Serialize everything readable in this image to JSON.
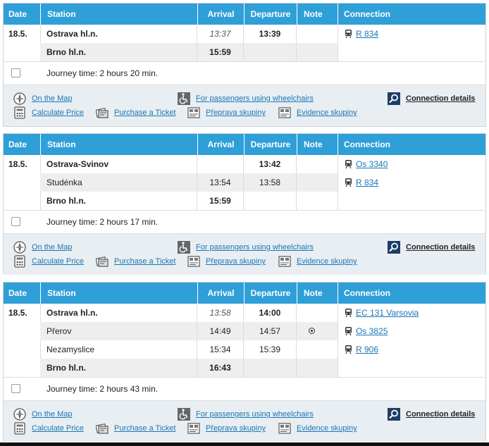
{
  "headers": {
    "date": "Date",
    "station": "Station",
    "arrival": "Arrival",
    "departure": "Departure",
    "note": "Note",
    "connection": "Connection"
  },
  "footer_links": {
    "map": "On the Map",
    "price": "Calculate Price",
    "ticket": "Purchase a Ticket",
    "wheelchair": "For passengers using wheelchairs",
    "group": "Přeprava skupiny",
    "evidence": "Evidence skupiny",
    "details": "Connection details"
  },
  "journeys": [
    {
      "date": "18.5.",
      "rows": [
        {
          "station": "Ostrava hl.n.",
          "arrival": "13:37",
          "departure": "13:39"
        },
        {
          "station": "Brno hl.n.",
          "arrival": "15:59",
          "departure": ""
        }
      ],
      "connections": [
        {
          "name": "R 834"
        }
      ],
      "journey_time": "Journey time: 2 hours 20 min."
    },
    {
      "date": "18.5.",
      "rows": [
        {
          "station": "Ostrava-Svinov",
          "arrival": "",
          "departure": "13:42"
        },
        {
          "station": "Studénka",
          "arrival": "13:54",
          "departure": "13:58"
        },
        {
          "station": "Brno hl.n.",
          "arrival": "15:59",
          "departure": ""
        }
      ],
      "connections": [
        {
          "name": "Os 3340"
        },
        {
          "name": "R 834"
        }
      ],
      "journey_time": "Journey time: 2 hours 17 min."
    },
    {
      "date": "18.5.",
      "rows": [
        {
          "station": "Ostrava hl.n.",
          "arrival": "13:58",
          "departure": "14:00"
        },
        {
          "station": "Přerov",
          "arrival": "14:49",
          "departure": "14:57"
        },
        {
          "station": "Nezamyslice",
          "arrival": "15:34",
          "departure": "15:39"
        },
        {
          "station": "Brno hl.n.",
          "arrival": "16:43",
          "departure": ""
        }
      ],
      "connections": [
        {
          "name": "EC 131 Varsovia"
        },
        {
          "name": "Os 3825"
        },
        {
          "name": "R 906"
        }
      ],
      "journey_time": "Journey time: 2 hours 43 min."
    }
  ]
}
